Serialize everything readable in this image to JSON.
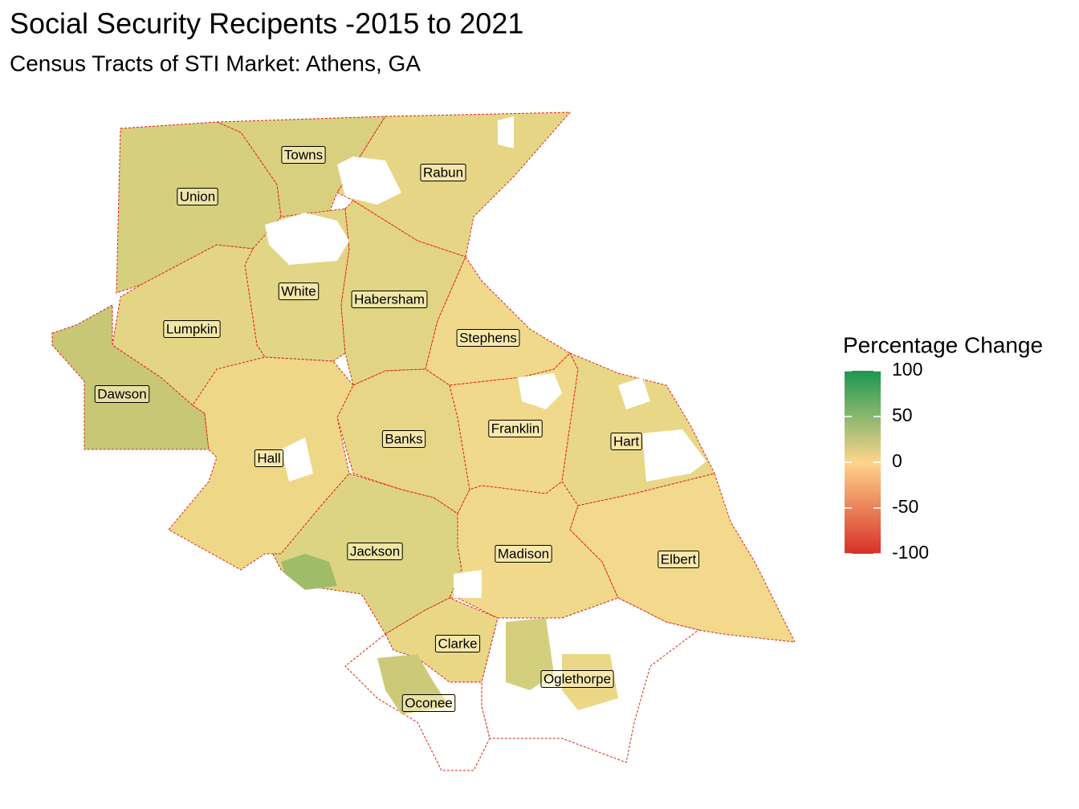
{
  "title": "Social Security Recipents -2015 to 2021",
  "subtitle": "Census Tracts of STI Market: Athens, GA",
  "legend": {
    "title": "Percentage Change",
    "limits": [
      -100,
      100
    ],
    "ticks": [
      100,
      50,
      0,
      -50,
      -100
    ],
    "colors": [
      "#d73027",
      "#fdd58c",
      "#1a9850"
    ]
  },
  "counties": [
    "Towns",
    "Rabun",
    "Union",
    "White",
    "Habersham",
    "Lumpkin",
    "Stephens",
    "Dawson",
    "Banks",
    "Franklin",
    "Hart",
    "Hall",
    "Jackson",
    "Madison",
    "Elbert",
    "Clarke",
    "Oglethorpe",
    "Oconee"
  ]
}
